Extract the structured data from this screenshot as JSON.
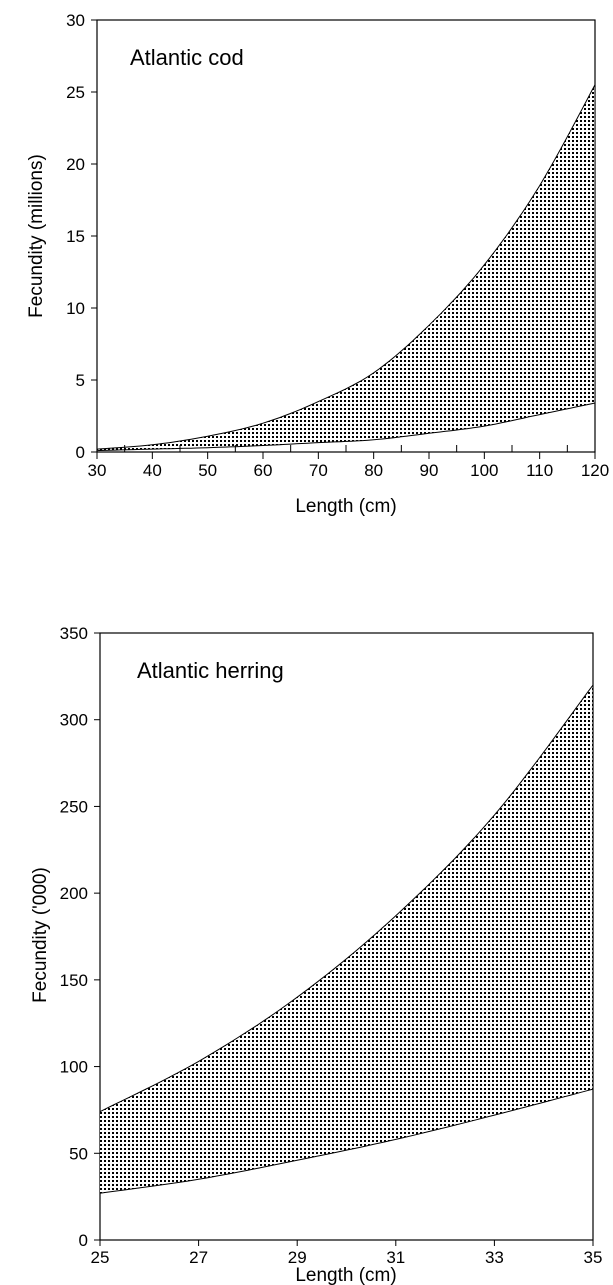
{
  "chart_data": [
    {
      "type": "area",
      "title": "Atlantic cod",
      "xlabel": "Length (cm)",
      "ylabel": "Fecundity (millions)",
      "xlim": [
        30,
        120
      ],
      "ylim": [
        0,
        30
      ],
      "xticks": [
        30,
        40,
        50,
        60,
        70,
        80,
        90,
        100,
        110,
        120
      ],
      "yticks": [
        0,
        5,
        10,
        15,
        20,
        25,
        30
      ],
      "x": [
        30,
        40,
        50,
        60,
        70,
        80,
        90,
        100,
        110,
        120
      ],
      "series": [
        {
          "values": [
            0.2,
            0.5,
            1.1,
            2.0,
            3.5,
            5.5,
            8.8,
            13.0,
            18.5,
            25.5
          ]
        },
        {
          "values": [
            0.1,
            0.2,
            0.3,
            0.45,
            0.65,
            0.85,
            1.3,
            1.8,
            2.6,
            3.4
          ]
        }
      ],
      "grid": false,
      "fill_pattern": "dotted"
    },
    {
      "type": "area",
      "title": "Atlantic herring",
      "xlabel": "Length (cm)",
      "ylabel": "Fecundity ('000)",
      "xlim": [
        25,
        35
      ],
      "ylim": [
        0,
        350
      ],
      "xticks": [
        25,
        27,
        29,
        31,
        33,
        35
      ],
      "yticks": [
        0,
        50,
        100,
        150,
        200,
        250,
        300,
        350
      ],
      "x": [
        25,
        27,
        29,
        31,
        33,
        35
      ],
      "series": [
        {
          "values": [
            74,
            103,
            140,
            187,
            245,
            320
          ]
        },
        {
          "values": [
            27,
            35,
            46,
            58,
            72,
            87
          ]
        }
      ],
      "grid": false,
      "fill_pattern": "dotted"
    }
  ]
}
